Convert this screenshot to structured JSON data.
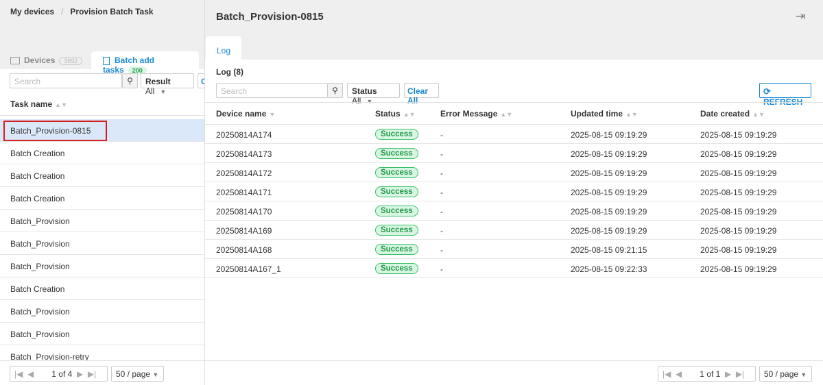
{
  "breadcrumb": {
    "root": "My devices",
    "separator": "/",
    "current": "Provision Batch Task"
  },
  "left": {
    "tabs": [
      {
        "label": "Devices",
        "count": "3692"
      },
      {
        "label": "Batch add tasks",
        "count": "200"
      }
    ],
    "search_placeholder": "Search",
    "result_filter": {
      "label": "Result",
      "value": "All"
    },
    "clear_fragment": "C",
    "column": "Task name",
    "tasks": [
      "Batch_Provision-0815",
      "Batch Creation",
      "Batch Creation",
      "Batch Creation",
      "Batch_Provision",
      "Batch_Provision",
      "Batch_Provision",
      "Batch Creation",
      "Batch_Provision",
      "Batch_Provision",
      "Batch_Provision-retry"
    ],
    "pagination": {
      "page": "1",
      "of": "of 4",
      "size": "50 / page"
    }
  },
  "right": {
    "title": "Batch_Provision-0815",
    "tab": "Log",
    "log_title": "Log (8)",
    "search_placeholder": "Search",
    "status_filter": {
      "label": "Status",
      "value": "All"
    },
    "clear": "Clear All",
    "refresh": "REFRESH",
    "table": {
      "columns": [
        "Device name",
        "Status",
        "Error Message",
        "Updated time",
        "Date created"
      ],
      "rows": [
        [
          "20250814A174",
          "Success",
          "-",
          "2025-08-15 09:19:29",
          "2025-08-15 09:19:29"
        ],
        [
          "20250814A173",
          "Success",
          "-",
          "2025-08-15 09:19:29",
          "2025-08-15 09:19:29"
        ],
        [
          "20250814A172",
          "Success",
          "-",
          "2025-08-15 09:19:29",
          "2025-08-15 09:19:29"
        ],
        [
          "20250814A171",
          "Success",
          "-",
          "2025-08-15 09:19:29",
          "2025-08-15 09:19:29"
        ],
        [
          "20250814A170",
          "Success",
          "-",
          "2025-08-15 09:19:29",
          "2025-08-15 09:19:29"
        ],
        [
          "20250814A169",
          "Success",
          "-",
          "2025-08-15 09:19:29",
          "2025-08-15 09:19:29"
        ],
        [
          "20250814A168",
          "Success",
          "-",
          "2025-08-15 09:21:15",
          "2025-08-15 09:19:29"
        ],
        [
          "20250814A167_1",
          "Success",
          "-",
          "2025-08-15 09:22:33",
          "2025-08-15 09:19:29"
        ]
      ]
    },
    "pagination": {
      "page": "1",
      "of": "of 1",
      "size": "50 / page"
    }
  }
}
